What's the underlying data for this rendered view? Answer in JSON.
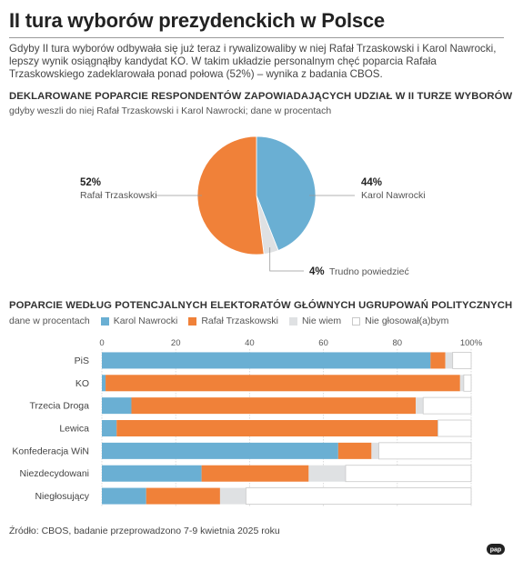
{
  "header": {
    "title": "II tura wyborów prezydenckich w Polsce",
    "intro": "Gdyby II tura wyborów odbywała się już teraz i rywalizowaliby w niej Rafał Trzaskowski i Karol Nawrocki, lepszy wynik osiągnąłby kandydat KO. W takim układzie personalnym chęć poparcia Rafała Trzaskowskiego zadeklarowała ponad połowa (52%) – wynika z badania CBOS."
  },
  "colors": {
    "nawrocki": "#6aafd3",
    "trzaskowski": "#f08139",
    "nie_wiem": "#dfe1e3",
    "nie_glosowal": "#ffffff",
    "nie_glosowal_border": "#c8c8c8"
  },
  "chart_data": [
    {
      "type": "pie",
      "title": "DEKLAROWANE POPARCIE RESPONDENTÓW ZAPOWIADAJĄCYCH UDZIAŁ W II TURZE WYBORÓW",
      "subtitle": "gdyby weszli do niej Rafał Trzaskowski i Karol Nawrocki; dane w procentach",
      "slices": [
        {
          "label": "Rafał Trzaskowski",
          "value": 52,
          "value_label": "52%",
          "color": "#f08139"
        },
        {
          "label": "Karol Nawrocki",
          "value": 44,
          "value_label": "44%",
          "color": "#6aafd3"
        },
        {
          "label": "Trudno powiedzieć",
          "value": 4,
          "value_label": "4%",
          "color": "#dfe1e3"
        }
      ]
    },
    {
      "type": "bar",
      "orientation": "horizontal",
      "stacked": true,
      "title": "POPARCIE WEDŁUG POTENCJALNYCH ELEKTORATÓW GŁÓWNYCH UGRUPOWAŃ POLITYCZNYCH",
      "units_label": "dane w procentach",
      "xlim": [
        0,
        100
      ],
      "x_ticks": [
        0,
        20,
        40,
        60,
        80
      ],
      "x_tick_labels": [
        "0",
        "20",
        "40",
        "60",
        "80"
      ],
      "x_max_label": "100%",
      "grid": true,
      "categories": [
        "PiS",
        "KO",
        "Trzecia Droga",
        "Lewica",
        "Konfederacja WiN",
        "Niezdecydowani",
        "Niegłosujący"
      ],
      "series": [
        {
          "name": "Karol Nawrocki",
          "color": "#6aafd3",
          "values": [
            89,
            1,
            8,
            4,
            64,
            27,
            12
          ]
        },
        {
          "name": "Rafał Trzaskowski",
          "color": "#f08139",
          "values": [
            4,
            96,
            77,
            87,
            9,
            29,
            20
          ]
        },
        {
          "name": "Nie wiem",
          "color": "#dfe1e3",
          "values": [
            2,
            1,
            2,
            0,
            2,
            10,
            7
          ]
        },
        {
          "name": "Nie głosował(a)bym",
          "color": "#ffffff",
          "values": [
            5,
            2,
            13,
            9,
            25,
            34,
            61
          ]
        }
      ]
    }
  ],
  "footer": {
    "source": "Źródło: CBOS, badanie przeprowadzono 7-9 kwietnia 2025 roku",
    "logo_text": "pap"
  }
}
